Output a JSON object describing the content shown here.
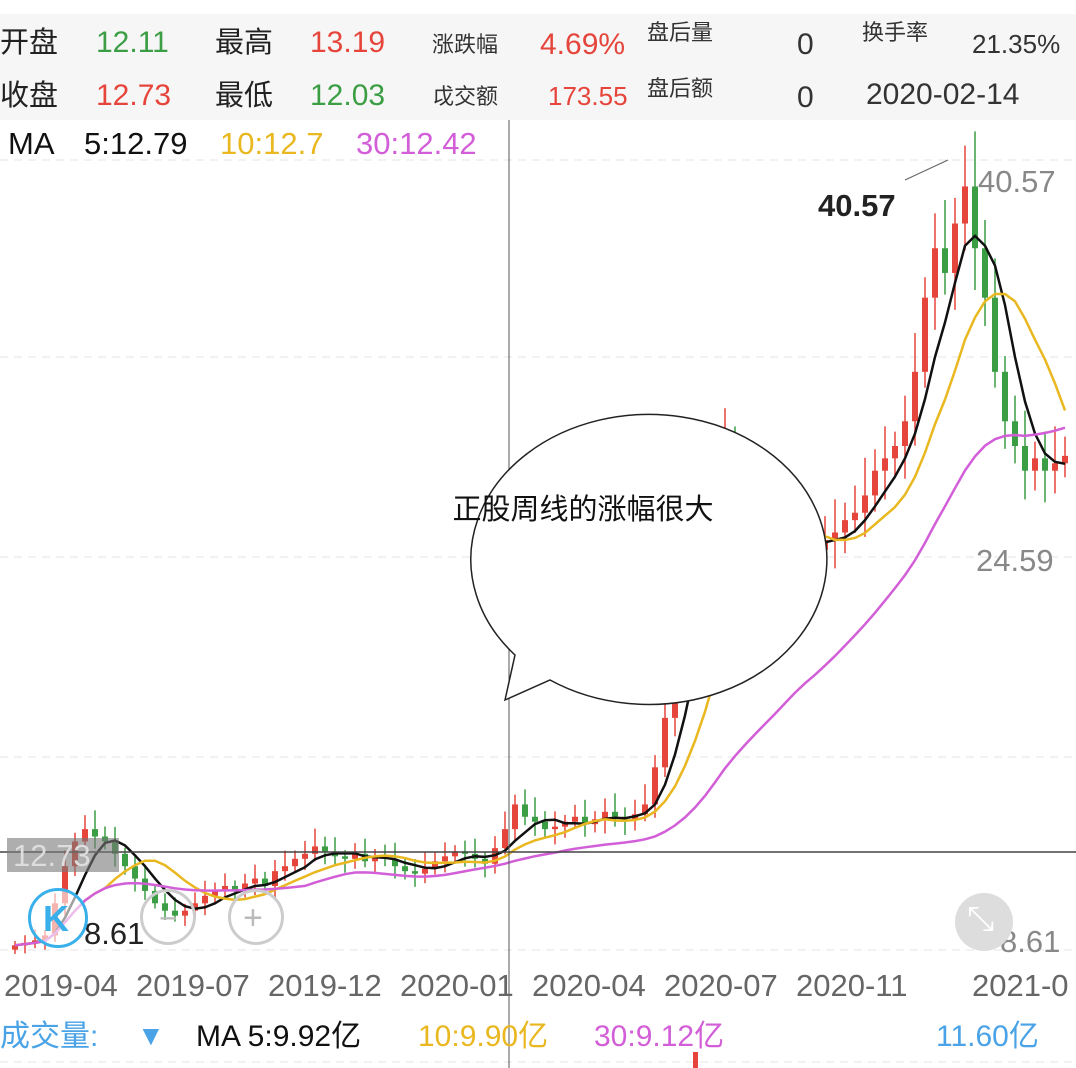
{
  "quote": {
    "open_label": "开盘",
    "open": "12.11",
    "high_label": "最高",
    "high": "13.19",
    "change_label": "涨跌幅",
    "change": "4.69%",
    "after_vol_label": "盘后量",
    "after_vol": "0",
    "turnover_label": "换手率",
    "turnover": "21.35%",
    "close_label": "收盘",
    "close": "12.73",
    "low_label": "最低",
    "low": "12.03",
    "amount_label": "戉交额",
    "amount": "173.55",
    "after_amt_label": "盘后额",
    "after_amt": "0",
    "date": "2020-02-14"
  },
  "ma": {
    "label": "MA",
    "ma5": "5:12.79",
    "ma10": "10:12.7",
    "ma30": "30:12.42"
  },
  "colors": {
    "up": "#e5453b",
    "down": "#3b9e44",
    "ma5": "#111111",
    "ma10": "#e9b820",
    "ma30": "#d25ed8",
    "accent": "#4aa3e6"
  },
  "chart": {
    "max_label": "40.57",
    "max_annot": "40.57",
    "mid_label": "24.59",
    "min_label": "8.61",
    "min_annot": "8.61",
    "cursor_price": "12.73",
    "x_labels": [
      "2019-04",
      "2019-07",
      "2019-12",
      "2020-01",
      "2020-04",
      "2020-07",
      "2020-11",
      "2021-0"
    ],
    "callout": "正股周线的涨幅很大"
  },
  "chart_data": {
    "type": "candlestick",
    "ylim": [
      8.61,
      40.57
    ],
    "closes": [
      8.8,
      8.9,
      9.0,
      9.2,
      10.5,
      12.0,
      13.0,
      13.5,
      13.2,
      13.0,
      12.5,
      12.0,
      11.5,
      11.0,
      10.5,
      10.2,
      10.0,
      10.2,
      10.5,
      10.8,
      11.0,
      11.2,
      11.0,
      11.3,
      11.5,
      11.2,
      11.8,
      12.0,
      12.3,
      12.5,
      12.8,
      12.6,
      12.4,
      12.3,
      12.5,
      12.2,
      12.4,
      12.3,
      12.0,
      11.8,
      11.7,
      11.9,
      12.2,
      12.4,
      12.6,
      12.5,
      12.3,
      12.1,
      12.73,
      13.5,
      14.5,
      14.0,
      13.8,
      13.5,
      13.6,
      13.8,
      14.0,
      13.7,
      13.9,
      14.2,
      14.0,
      13.9,
      14.1,
      14.5,
      16.0,
      18.0,
      20.0,
      22.0,
      24.0,
      26.0,
      28.0,
      29.0,
      27.0,
      26.0,
      25.5,
      25.0,
      24.5,
      25.0,
      25.5,
      25.0,
      24.8,
      25.2,
      25.5,
      26.0,
      26.3,
      27.0,
      28.0,
      28.5,
      29.0,
      30.0,
      32.0,
      35.0,
      37.0,
      36.0,
      38.0,
      39.5,
      37.0,
      35.0,
      32.0,
      30.0,
      29.0,
      28.0,
      28.5,
      28.0,
      28.3,
      28.6
    ]
  },
  "volume": {
    "label": "成交量:",
    "arrow": "▼",
    "ma5": "MA 5:9.92亿",
    "ma10": "10:9.90亿",
    "ma30": "30:9.12亿",
    "value": "11.60亿"
  }
}
